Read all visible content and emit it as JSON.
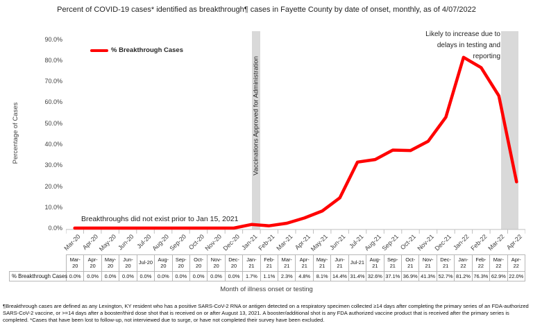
{
  "title": "Percent of COVID-19 cases* identified as breakthrough¶ cases in Fayette County by date of onset, monthly, as of 4/07/2022",
  "legend": {
    "label": "% Breakthrough Cases"
  },
  "y_axis": {
    "title": "Percentage of Cases",
    "ticks": [
      "90.0%",
      "80.0%",
      "70.0%",
      "60.0%",
      "50.0%",
      "40.0%",
      "30.0%",
      "20.0%",
      "10.0%",
      "0.0%"
    ]
  },
  "x_axis": {
    "title": "Month of illness onset or testing"
  },
  "annotations": {
    "no_breakthroughs": "Breakthroughs did not exist prior to Jan 15, 2021",
    "vaccinations_band": "Vaccinations Approved for Administration",
    "likely_increase": "Likely to increase due to delays in testing and reporting"
  },
  "table": {
    "row_label": "% Breakthrough Cases",
    "headers": [
      "Mar-\n20",
      "Apr-\n20",
      "May-\n20",
      "Jun-\n20",
      "Jul-20",
      "Aug-\n20",
      "Sep-\n20",
      "Oct-\n20",
      "Nov-\n20",
      "Dec-\n20",
      "Jan-\n21",
      "Feb-\n21",
      "Mar-\n21",
      "Apr-\n21",
      "May-\n21",
      "Jun-\n21",
      "Jul-21",
      "Aug-\n21",
      "Sep-\n21",
      "Oct-\n21",
      "Nov-\n21",
      "Dec-\n21",
      "Jan-\n22",
      "Feb-\n22",
      "Mar-\n22",
      "Apr-\n22"
    ],
    "values": [
      "0.0%",
      "0.0%",
      "0.0%",
      "0.0%",
      "0.0%",
      "0.0%",
      "0.0%",
      "0.0%",
      "0.0%",
      "0.0%",
      "1.7%",
      "1.1%",
      "2.3%",
      "4.8%",
      "8.1%",
      "14.4%",
      "31.4%",
      "32.6%",
      "37.1%",
      "36.9%",
      "41.3%",
      "52.7%",
      "81.2%",
      "76.3%",
      "62.9%",
      "22.0%"
    ]
  },
  "footnote": "¶Breakthrough cases are defined as any Lexington, KY resident who has a positive SARS-CoV-2 RNA or antigen detected on a respiratory specimen collected ≥14 days after completing the primary series of an FDA-authorized SARS-CoV-2 vaccine, or >=14 days after a booster/third dose shot that is received on or after August 13, 2021.  A booster/additional shot is any FDA authorized vaccine product that is received after the primary series is completed. *Cases that have been lost to follow-up, not interviewed due to surge, or have not completed their survey have been excluded.",
  "colors": {
    "line": "#ff0000",
    "band": "#d9d9d9",
    "axis": "#bfbfbf"
  },
  "chart_data": {
    "type": "line",
    "title": "Percent of COVID-19 cases* identified as breakthrough¶ cases in Fayette County by date of onset, monthly, as of 4/07/2022",
    "xlabel": "Month of illness onset or testing",
    "ylabel": "Percentage of Cases",
    "ylim": [
      0,
      90
    ],
    "grid": false,
    "legend_position": "top-left",
    "categories": [
      "Mar-20",
      "Apr-20",
      "May-20",
      "Jun-20",
      "Jul-20",
      "Aug-20",
      "Sep-20",
      "Oct-20",
      "Nov-20",
      "Dec-20",
      "Jan-21",
      "Feb-21",
      "Mar-21",
      "Apr-21",
      "May-21",
      "Jun-21",
      "Jul-21",
      "Aug-21",
      "Sep-21",
      "Oct-21",
      "Nov-21",
      "Dec-21",
      "Jan-22",
      "Feb-22",
      "Mar-22",
      "Apr-22"
    ],
    "series": [
      {
        "name": "% Breakthrough Cases",
        "values": [
          0.0,
          0.0,
          0.0,
          0.0,
          0.0,
          0.0,
          0.0,
          0.0,
          0.0,
          0.0,
          1.7,
          1.1,
          2.3,
          4.8,
          8.1,
          14.4,
          31.4,
          32.6,
          37.1,
          36.9,
          41.3,
          52.7,
          81.2,
          76.3,
          62.9,
          22.0
        ]
      }
    ],
    "highlight_bands": [
      {
        "category": "Jan-21",
        "label": "Vaccinations Approved for Administration"
      },
      {
        "category": "Apr-22",
        "label": "Likely to increase due to delays in testing and reporting"
      }
    ]
  }
}
